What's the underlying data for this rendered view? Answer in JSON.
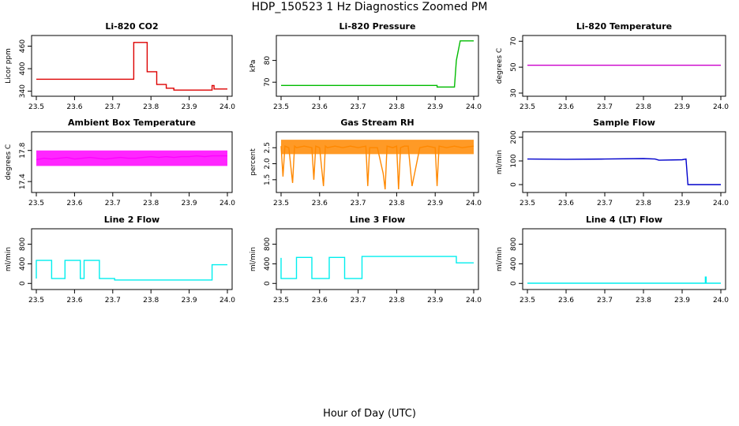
{
  "page": {
    "title": "HDP_150523  1 Hz Diagnostics Zoomed PM",
    "xlabel": "Hour of Day (UTC)"
  },
  "chart_data": [
    {
      "type": "line",
      "title": "Li-820 CO2",
      "ylabel": "Licor ppm",
      "xlim": [
        23.5,
        24.0
      ],
      "ylim": [
        335,
        480
      ],
      "xticks": [
        "23.5",
        "23.6",
        "23.7",
        "23.8",
        "23.9",
        "24.0"
      ],
      "yticks": [
        "340",
        "400",
        "460"
      ],
      "color": "#dd0000",
      "series": [
        {
          "x": [
            23.5,
            23.755,
            23.755,
            23.79,
            23.79,
            23.815,
            23.815,
            23.84,
            23.84,
            23.86,
            23.86,
            23.96,
            23.96,
            23.965,
            23.965,
            24.0
          ],
          "y": [
            372,
            372,
            470,
            470,
            392,
            392,
            358,
            358,
            348,
            348,
            343,
            343,
            355,
            355,
            346,
            346
          ]
        }
      ]
    },
    {
      "type": "line",
      "title": "Li-820 Pressure",
      "ylabel": "kPa",
      "xlim": [
        23.5,
        24.0
      ],
      "ylim": [
        65,
        90
      ],
      "xticks": [
        "23.5",
        "23.6",
        "23.7",
        "23.8",
        "23.9",
        "24.0"
      ],
      "yticks": [
        "70",
        "80"
      ],
      "color": "#00bb00",
      "series": [
        {
          "x": [
            23.5,
            23.905,
            23.905,
            23.95,
            23.955,
            23.965,
            24.0
          ],
          "y": [
            68.5,
            68.5,
            67.8,
            67.8,
            80,
            89,
            89
          ]
        }
      ]
    },
    {
      "type": "line",
      "title": "Li-820 Temperature",
      "ylabel": "degrees C",
      "xlim": [
        23.5,
        24.0
      ],
      "ylim": [
        30,
        72
      ],
      "xticks": [
        "23.5",
        "23.6",
        "23.7",
        "23.8",
        "23.9",
        "24.0"
      ],
      "yticks": [
        "30",
        "50",
        "70"
      ],
      "color": "#cc00cc",
      "series": [
        {
          "x": [
            23.5,
            24.0
          ],
          "y": [
            51.5,
            51.5
          ]
        }
      ]
    },
    {
      "type": "line",
      "title": "Ambient Box Temperature",
      "ylabel": "degrees C",
      "xlim": [
        23.5,
        24.0
      ],
      "ylim": [
        17.3,
        18.0
      ],
      "xticks": [
        "23.5",
        "23.6",
        "23.7",
        "23.8",
        "23.9",
        "24.0"
      ],
      "yticks": [
        "17.4",
        "17.8"
      ],
      "color": "#ff00ff",
      "series": [
        {
          "x": [
            23.5,
            23.52,
            23.54,
            23.56,
            23.58,
            23.6,
            23.62,
            23.64,
            23.66,
            23.68,
            23.7,
            23.72,
            23.74,
            23.76,
            23.78,
            23.8,
            23.82,
            23.84,
            23.86,
            23.88,
            23.9,
            23.92,
            23.94,
            23.96,
            23.98,
            24.0
          ],
          "y": [
            17.68,
            17.7,
            17.69,
            17.7,
            17.71,
            17.69,
            17.7,
            17.71,
            17.7,
            17.69,
            17.7,
            17.71,
            17.7,
            17.7,
            17.71,
            17.72,
            17.71,
            17.72,
            17.71,
            17.72,
            17.72,
            17.73,
            17.72,
            17.73,
            17.73,
            17.73
          ],
          "band": [
            17.6,
            17.8
          ]
        }
      ]
    },
    {
      "type": "line",
      "title": "Gas Stream RH",
      "ylabel": "percent",
      "xlim": [
        23.5,
        24.0
      ],
      "ylim": [
        1.2,
        2.9
      ],
      "xticks": [
        "23.5",
        "23.6",
        "23.7",
        "23.8",
        "23.9",
        "24.0"
      ],
      "yticks": [
        "1.5",
        "2.0",
        "2.5"
      ],
      "color": "#ff8800",
      "series": [
        {
          "x": [
            23.5,
            23.505,
            23.51,
            23.52,
            23.53,
            23.535,
            23.54,
            23.56,
            23.58,
            23.585,
            23.59,
            23.6,
            23.61,
            23.615,
            23.62,
            23.64,
            23.66,
            23.68,
            23.7,
            23.72,
            23.725,
            23.73,
            23.75,
            23.765,
            23.77,
            23.775,
            23.79,
            23.8,
            23.805,
            23.81,
            23.82,
            23.83,
            23.84,
            23.86,
            23.88,
            23.9,
            23.905,
            23.91,
            23.93,
            23.95,
            23.97,
            24.0
          ],
          "y": [
            2.55,
            1.6,
            2.55,
            2.5,
            1.4,
            2.55,
            2.5,
            2.55,
            2.5,
            1.5,
            2.55,
            2.5,
            1.3,
            2.55,
            2.5,
            2.55,
            2.5,
            2.55,
            2.5,
            2.55,
            1.3,
            2.5,
            2.5,
            1.7,
            1.2,
            2.55,
            2.5,
            2.55,
            1.2,
            2.5,
            2.55,
            2.55,
            1.3,
            2.5,
            2.55,
            2.5,
            1.3,
            2.55,
            2.5,
            2.55,
            2.5,
            2.55
          ],
          "band": [
            2.3,
            2.75
          ]
        }
      ]
    },
    {
      "type": "line",
      "title": "Sample Flow",
      "ylabel": "ml/min",
      "xlim": [
        23.5,
        24.0
      ],
      "ylim": [
        -20,
        210
      ],
      "xticks": [
        "23.5",
        "23.6",
        "23.7",
        "23.8",
        "23.9",
        "24.0"
      ],
      "yticks": [
        "0",
        "100",
        "200"
      ],
      "color": "#0000cc",
      "series": [
        {
          "x": [
            23.5,
            23.6,
            23.7,
            23.8,
            23.83,
            23.84,
            23.9,
            23.91,
            23.915,
            24.0
          ],
          "y": [
            108,
            107,
            108,
            110,
            108,
            103,
            105,
            108,
            0,
            0
          ]
        }
      ]
    },
    {
      "type": "line",
      "title": "Line 2 Flow",
      "ylabel": "ml/min",
      "xlim": [
        23.5,
        24.0
      ],
      "ylim": [
        -60,
        1050
      ],
      "xticks": [
        "23.5",
        "23.6",
        "23.7",
        "23.8",
        "23.9",
        "24.0"
      ],
      "yticks": [
        "0",
        "400",
        "800"
      ],
      "color": "#00eeee",
      "series": [
        {
          "x": [
            23.5,
            23.5,
            23.54,
            23.54,
            23.575,
            23.575,
            23.615,
            23.615,
            23.625,
            23.625,
            23.665,
            23.665,
            23.705,
            23.705,
            23.75,
            23.96,
            23.96,
            24.0
          ],
          "y": [
            100,
            470,
            470,
            100,
            100,
            470,
            470,
            100,
            100,
            470,
            470,
            100,
            100,
            70,
            70,
            70,
            380,
            380
          ]
        }
      ]
    },
    {
      "type": "line",
      "title": "Line 3 Flow",
      "ylabel": "ml/min",
      "xlim": [
        23.5,
        24.0
      ],
      "ylim": [
        -60,
        1050
      ],
      "xticks": [
        "23.5",
        "23.6",
        "23.7",
        "23.8",
        "23.9",
        "24.0"
      ],
      "yticks": [
        "0",
        "400",
        "800"
      ],
      "color": "#00eeee",
      "series": [
        {
          "x": [
            23.5,
            23.5,
            23.51,
            23.51,
            23.54,
            23.54,
            23.58,
            23.58,
            23.625,
            23.625,
            23.665,
            23.665,
            23.71,
            23.71,
            23.955,
            23.955,
            24.0
          ],
          "y": [
            520,
            100,
            100,
            100,
            100,
            530,
            530,
            100,
            100,
            530,
            530,
            100,
            100,
            550,
            550,
            420,
            420
          ]
        }
      ]
    },
    {
      "type": "line",
      "title": "Line 4 (LT) Flow",
      "ylabel": "ml/min",
      "xlim": [
        23.5,
        24.0
      ],
      "ylim": [
        -60,
        1050
      ],
      "xticks": [
        "23.5",
        "23.6",
        "23.7",
        "23.8",
        "23.9",
        "24.0"
      ],
      "yticks": [
        "0",
        "400",
        "800"
      ],
      "color": "#00eeee",
      "series": [
        {
          "x": [
            23.5,
            23.96,
            23.96,
            23.962,
            23.962,
            24.0
          ],
          "y": [
            5,
            5,
            130,
            130,
            5,
            5
          ]
        }
      ]
    }
  ]
}
